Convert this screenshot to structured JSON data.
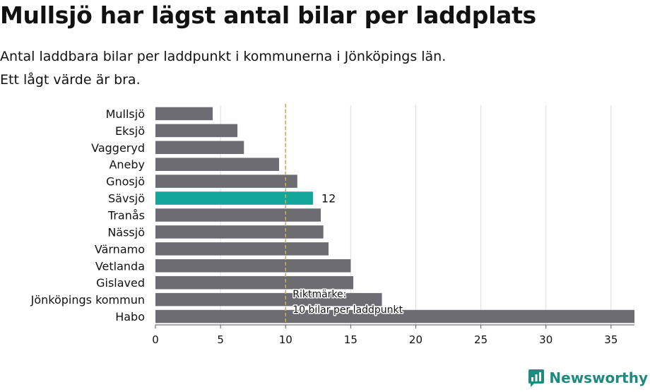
{
  "header": {
    "title": "Mullsjö har lägst antal bilar per laddplats",
    "subtitle_line1": "Antal laddbara bilar per laddpunkt i kommunerna i Jönköpings län.",
    "subtitle_line2": "Ett lågt värde är bra."
  },
  "chart_data": {
    "type": "bar",
    "orientation": "horizontal",
    "categories": [
      "Mullsjö",
      "Eksjö",
      "Vaggeryd",
      "Aneby",
      "Gnosjö",
      "Sävsjö",
      "Tranås",
      "Nässjö",
      "Värnamo",
      "Vetlanda",
      "Gislaved",
      "Jönköpings kommun",
      "Habo"
    ],
    "values": [
      4.4,
      6.3,
      6.8,
      9.5,
      10.9,
      12.1,
      12.7,
      12.9,
      13.3,
      15.0,
      15.2,
      17.4,
      36.8
    ],
    "highlight": {
      "category": "Sävsjö",
      "label": "12"
    },
    "xlim": [
      0,
      36.8
    ],
    "xticks": [
      0,
      5,
      10,
      15,
      20,
      25,
      30,
      35
    ],
    "reference_line": {
      "value": 10,
      "label_line1": "Riktmärke:",
      "label_line2": "10 bilar per laddpunkt"
    },
    "grid": "vertical",
    "colors": {
      "bar": "#6d6c72",
      "highlight": "#12a59a",
      "reference": "#d4a94a",
      "grid": "#dcdcdc"
    }
  },
  "brand": {
    "name": "Newsworthy",
    "color": "#1f8a80"
  }
}
